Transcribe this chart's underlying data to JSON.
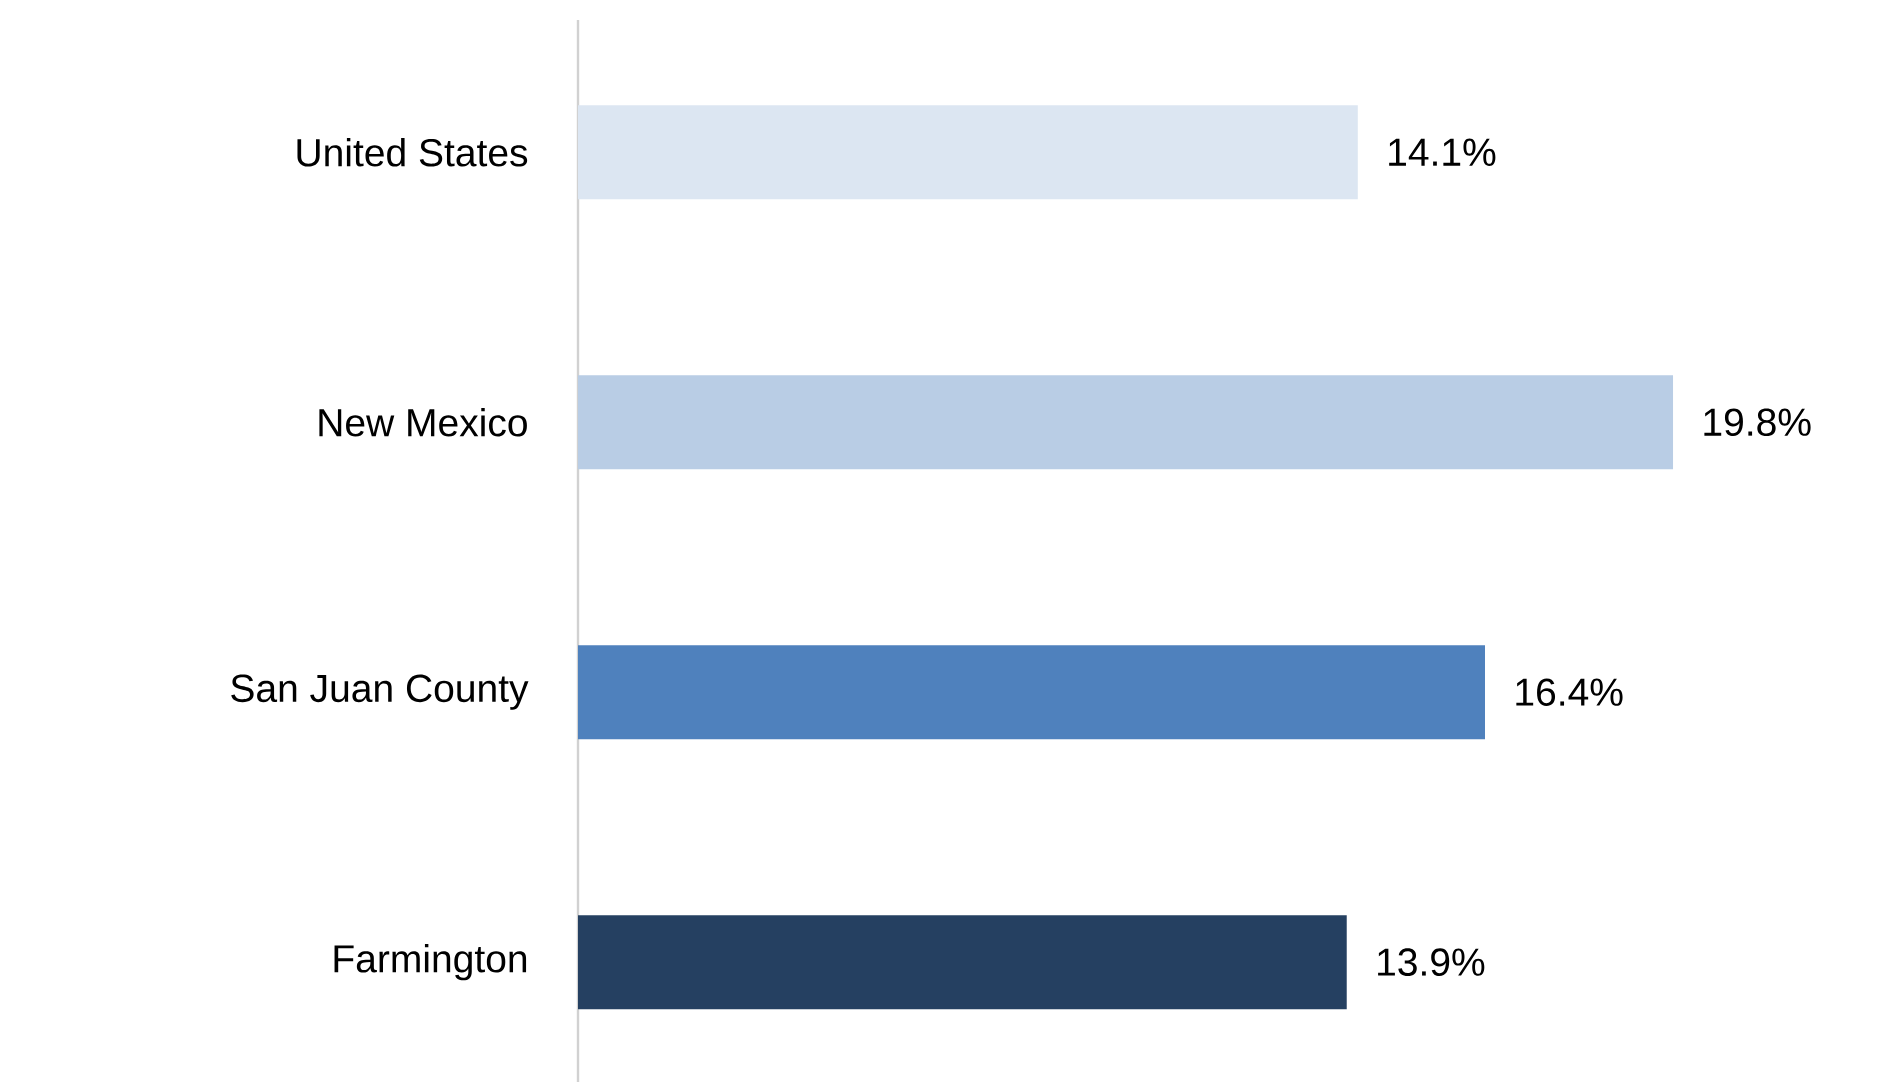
{
  "chart_data": {
    "type": "bar",
    "orientation": "horizontal",
    "categories": [
      "United States",
      "New Mexico",
      "San Juan County",
      "Farmington"
    ],
    "values": [
      14.1,
      19.8,
      16.4,
      13.9
    ],
    "colors": [
      "#dce6f2",
      "#b9cde5",
      "#4f81bd",
      "#254061"
    ],
    "value_labels": [
      "14.1%",
      "19.8%",
      "16.4%",
      "13.9%"
    ],
    "tick_labels": "y"
  }
}
